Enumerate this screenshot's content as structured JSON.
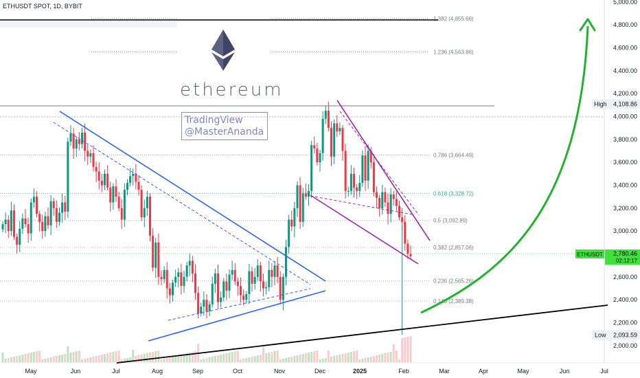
{
  "header": {
    "symbol": "ETHUSDT SPOT, 1D, BYBIT"
  },
  "watermark": {
    "line1": "TradingView",
    "line2": "@MasterAnanda"
  },
  "brand": {
    "text": "ethereum"
  },
  "colors": {
    "up": "#089981",
    "down": "#f23645",
    "fib_line": "#9598a1",
    "fib_618": "#22ab94",
    "triangle": "#2962ff",
    "wedge": "#9c27b0",
    "arrow": "#1fb32e",
    "trendline": "#000000",
    "price_label": "#3ee23a"
  },
  "chart_data": {
    "type": "candlestick",
    "title": "ETHUSDT SPOT, 1D, BYBIT",
    "x_labels": [
      "May",
      "Jun",
      "Jul",
      "Aug",
      "Sep",
      "Oct",
      "Nov",
      "Dec",
      "2025",
      "Feb",
      "Mar",
      "Apr",
      "May",
      "Jun",
      "Jul"
    ],
    "y_ticks": [
      "5,000.00",
      "4,800.00",
      "4,600.00",
      "4,400.00",
      "4,200.00",
      "4,000.00",
      "3,800.00",
      "3,600.00",
      "3,400.00",
      "3,200.00",
      "3,000.00",
      "2,800.00",
      "2,600.00",
      "2,400.00",
      "2,200.00",
      "2,000.00"
    ],
    "ylim": [
      1820,
      5020
    ],
    "fib_levels": [
      {
        "label": "1.382 (4,855.66)",
        "value": 4855.66
      },
      {
        "label": "1.236 (4,563.86)",
        "value": 4563.86
      },
      {
        "label": "0.786 (3,664.49)",
        "value": 3664.49
      },
      {
        "label": "0.618 (3,328.72)",
        "value": 3328.72
      },
      {
        "label": "0.5 (3,092.89)",
        "value": 3092.89
      },
      {
        "label": "0.382 (2,857.06)",
        "value": 2857.06
      },
      {
        "label": "0.236 (2,565.26)",
        "value": 2565.26
      },
      {
        "label": "0.148 (2,389.38)",
        "value": 2389.38
      }
    ],
    "high": {
      "label": "High",
      "value": "4,108.86"
    },
    "low": {
      "label": "Low",
      "value": "2,093.59"
    },
    "current": {
      "symbol": "ETHUSDT",
      "price": "2,780.46",
      "countdown": "02:12:17"
    },
    "series_close": [
      3060,
      3100,
      3000,
      3180,
      2950,
      2880,
      3020,
      3110,
      3060,
      2980,
      3250,
      3300,
      3150,
      3080,
      3000,
      3130,
      3050,
      3260,
      3200,
      3080,
      3160,
      3250,
      3170,
      3780,
      3850,
      3720,
      3800,
      3760,
      3860,
      3700,
      3650,
      3680,
      3560,
      3520,
      3440,
      3400,
      3500,
      3380,
      3250,
      3390,
      3300,
      3200,
      3100,
      3360,
      3420,
      3480,
      3500,
      3430,
      3360,
      3120,
      3200,
      3300,
      2960,
      2680,
      2900,
      2600,
      2580,
      2660,
      2500,
      2440,
      2550,
      2600,
      2640,
      2520,
      2600,
      2700,
      2740,
      2630,
      2460,
      2280,
      2340,
      2400,
      2300,
      2360,
      2540,
      2630,
      2380,
      2420,
      2560,
      2480,
      2620,
      2660,
      2560,
      2520,
      2440,
      2400,
      2450,
      2650,
      2540,
      2600,
      2700,
      2560,
      2500,
      2510,
      2660,
      2600,
      2700,
      2600,
      2400,
      2600,
      2860,
      3100,
      3040,
      3200,
      3400,
      3080,
      3330,
      3300,
      3350,
      3750,
      3720,
      3600,
      3680,
      3980,
      4050,
      3900,
      3650,
      3940,
      3870,
      3900,
      3700,
      3350,
      3350,
      3500,
      3380,
      3350,
      3420,
      3660,
      3440,
      3700,
      3600,
      3340,
      3290,
      3200,
      3340,
      3250,
      3150,
      3320,
      3280,
      3220,
      3120,
      3080,
      2890,
      2800,
      2780
    ]
  }
}
